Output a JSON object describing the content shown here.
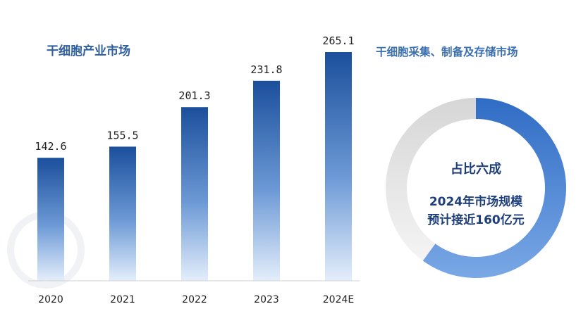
{
  "left_title": "干细胞产业市场",
  "right_title": "干细胞采集、制备及存储市场",
  "chart_data": [
    {
      "type": "bar",
      "categories": [
        "2020",
        "2021",
        "2022",
        "2023",
        "2024E"
      ],
      "values": [
        142.6,
        155.5,
        201.3,
        231.8,
        265.1
      ],
      "value_labels": [
        "142.6",
        "155.5",
        "201.3",
        "231.8",
        "265.1"
      ],
      "title": "干细胞产业市场",
      "grid": false,
      "colors": {
        "bar_top": "#1b4f9c",
        "bar_bottom": "#e4eefb"
      }
    },
    {
      "type": "pie",
      "style": "donut",
      "title": "干细胞采集、制备及存储市场",
      "slices": [
        {
          "value": 0.6,
          "color": "#3b78cc"
        },
        {
          "value": 0.4,
          "color": "#dcdcdc"
        }
      ],
      "center_text": {
        "headline": "占比六成",
        "line1": "2024年市场规模",
        "line2": "预计接近160亿元"
      }
    }
  ]
}
